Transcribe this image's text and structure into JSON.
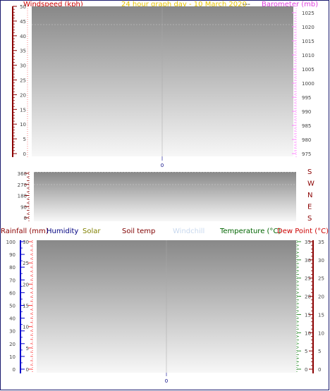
{
  "chart_data": [
    {
      "type": "line",
      "title": "24 hour graph day - 10 March 2020",
      "title_suffix": "---",
      "left_axis": {
        "label": "Windspeed (kph)",
        "ticks": [
          "0",
          "5",
          "10",
          "15",
          "20",
          "25",
          "30",
          "35",
          "40",
          "45",
          "50"
        ],
        "range": [
          0,
          50
        ],
        "color": "#8b0000",
        "label_color": "#cc0000"
      },
      "right_axis": {
        "label": "Barometer (mb)",
        "ticks": [
          "975",
          "980",
          "985",
          "990",
          "995",
          "1000",
          "1005",
          "1010",
          "1015",
          "1020",
          "1025"
        ],
        "range": [
          975,
          1027
        ],
        "color": "#e040e0"
      },
      "x_ticks": [
        "0"
      ],
      "series": []
    },
    {
      "type": "line",
      "left_axis": {
        "ticks": [
          "0",
          "90",
          "180",
          "270",
          "360"
        ],
        "range": [
          0,
          360
        ],
        "color": "#8b0000"
      },
      "right_axis": {
        "ticks": [
          "S",
          "E",
          "N",
          "W",
          "S"
        ],
        "color": "#8b0000"
      },
      "series": []
    },
    {
      "type": "line",
      "legend": [
        {
          "name": "Rainfall (mm)",
          "color": "#8b0000"
        },
        {
          "name": "Humidity",
          "color": "#000080"
        },
        {
          "name": "Solar",
          "color": "#808000"
        },
        {
          "name": "Soil temp",
          "color": "#800000"
        },
        {
          "name": "Windchill",
          "color": "#c8d8ee"
        },
        {
          "name": "Temperature (°C)",
          "color": "#006400"
        },
        {
          "name": "Dew Point (°C)",
          "color": "#cc0000"
        }
      ],
      "humidity_axis": {
        "ticks": [
          "0",
          "10",
          "20",
          "30",
          "40",
          "50",
          "60",
          "70",
          "80",
          "90",
          "100"
        ],
        "range": [
          0,
          100
        ],
        "color": "#0000cc"
      },
      "rain_axis": {
        "ticks": [
          "0",
          "5",
          "10",
          "15",
          "20",
          "25",
          "30"
        ],
        "range": [
          0,
          30
        ],
        "color": "#cc0000"
      },
      "temp_axis": {
        "ticks": [
          "0",
          "5",
          "10",
          "15",
          "20",
          "25",
          "30",
          "35"
        ],
        "range": [
          0,
          35
        ],
        "color": "#2e8b2e"
      },
      "dew_axis": {
        "ticks": [
          "0",
          "5",
          "10",
          "15",
          "20",
          "25",
          "30",
          "35"
        ],
        "range": [
          0,
          35
        ],
        "color": "#8b0000"
      },
      "x_ticks": [
        "0"
      ],
      "series": []
    }
  ]
}
